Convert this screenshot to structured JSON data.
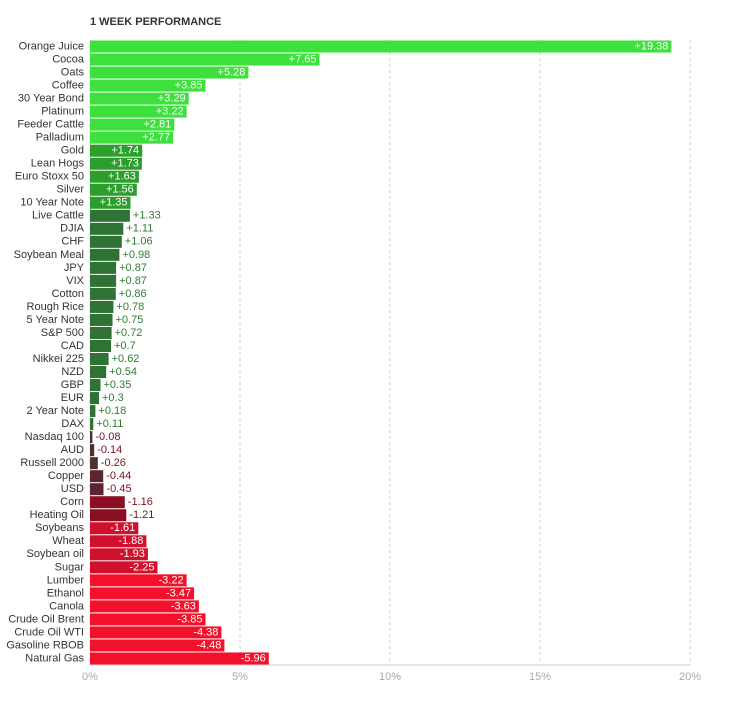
{
  "chart_data": {
    "type": "bar",
    "orientation": "horizontal",
    "bar_length": "magnitude",
    "title": "1 WEEK PERFORMANCE",
    "categories": [
      "Orange Juice",
      "Cocoa",
      "Oats",
      "Coffee",
      "30 Year Bond",
      "Platinum",
      "Feeder Cattle",
      "Palladium",
      "Gold",
      "Lean Hogs",
      "Euro Stoxx 50",
      "Silver",
      "10 Year Note",
      "Live Cattle",
      "DJIA",
      "CHF",
      "Soybean Meal",
      "JPY",
      "VIX",
      "Cotton",
      "Rough Rice",
      "5 Year Note",
      "S&P 500",
      "CAD",
      "Nikkei 225",
      "NZD",
      "GBP",
      "EUR",
      "2 Year Note",
      "DAX",
      "Nasdaq 100",
      "AUD",
      "Russell 2000",
      "Copper",
      "USD",
      "Corn",
      "Heating Oil",
      "Soybeans",
      "Wheat",
      "Soybean oil",
      "Sugar",
      "Lumber",
      "Ethanol",
      "Canola",
      "Crude Oil Brent",
      "Crude Oil WTI",
      "Gasoline RBOB",
      "Natural Gas"
    ],
    "values": [
      19.38,
      7.65,
      5.28,
      3.85,
      3.29,
      3.22,
      2.81,
      2.77,
      1.74,
      1.73,
      1.63,
      1.56,
      1.35,
      1.33,
      1.11,
      1.06,
      0.98,
      0.87,
      0.87,
      0.86,
      0.78,
      0.75,
      0.72,
      0.7,
      0.62,
      0.54,
      0.35,
      0.3,
      0.18,
      0.11,
      -0.08,
      -0.14,
      -0.26,
      -0.44,
      -0.45,
      -1.16,
      -1.21,
      -1.61,
      -1.88,
      -1.93,
      -2.25,
      -3.22,
      -3.47,
      -3.63,
      -3.85,
      -4.38,
      -4.48,
      -5.96
    ],
    "value_labels": [
      "+19.38",
      "+7.65",
      "+5.28",
      "+3.85",
      "+3.29",
      "+3.22",
      "+2.81",
      "+2.77",
      "+1.74",
      "+1.73",
      "+1.63",
      "+1.56",
      "+1.35",
      "+1.33",
      "+1.11",
      "+1.06",
      "+0.98",
      "+0.87",
      "+0.87",
      "+0.86",
      "+0.78",
      "+0.75",
      "+0.72",
      "+0.7",
      "+0.62",
      "+0.54",
      "+0.35",
      "+0.3",
      "+0.18",
      "+0.11",
      "-0.08",
      "-0.14",
      "-0.26",
      "-0.44",
      "-0.45",
      "-1.16",
      "-1.21",
      "-1.61",
      "-1.88",
      "-1.93",
      "-2.25",
      "-3.22",
      "-3.47",
      "-3.63",
      "-3.85",
      "-4.38",
      "-4.48",
      "-5.96"
    ],
    "colors": [
      "#3ee03e",
      "#3ee03e",
      "#3ee03e",
      "#3ee03e",
      "#3ee03e",
      "#3ee03e",
      "#3ee03e",
      "#3ee03e",
      "#2b9e2b",
      "#2b9e2b",
      "#2b9e2b",
      "#2b9e2b",
      "#2b9e2b",
      "#2e7234",
      "#2e7234",
      "#2e7234",
      "#2e7234",
      "#2e7234",
      "#2e7234",
      "#2e7234",
      "#2e7234",
      "#2e7234",
      "#2e7234",
      "#2e7234",
      "#2e7234",
      "#2e7234",
      "#2e7234",
      "#2e7234",
      "#2e7234",
      "#2e7234",
      "#4a3030",
      "#4a3030",
      "#4a3030",
      "#5c2430",
      "#5c2430",
      "#8b0f22",
      "#8b0f22",
      "#d0102c",
      "#d0102c",
      "#d0102c",
      "#d0102c",
      "#f2102a",
      "#f2102a",
      "#f2102a",
      "#f2102a",
      "#f2102a",
      "#f2102a",
      "#f2102a"
    ],
    "xlim": [
      0,
      20
    ],
    "xticks": [
      {
        "value": 0,
        "label": "0%"
      },
      {
        "value": 5,
        "label": "5%"
      },
      {
        "value": 10,
        "label": "10%"
      },
      {
        "value": 15,
        "label": "15%"
      },
      {
        "value": 20,
        "label": "20%"
      }
    ],
    "grid": true
  }
}
